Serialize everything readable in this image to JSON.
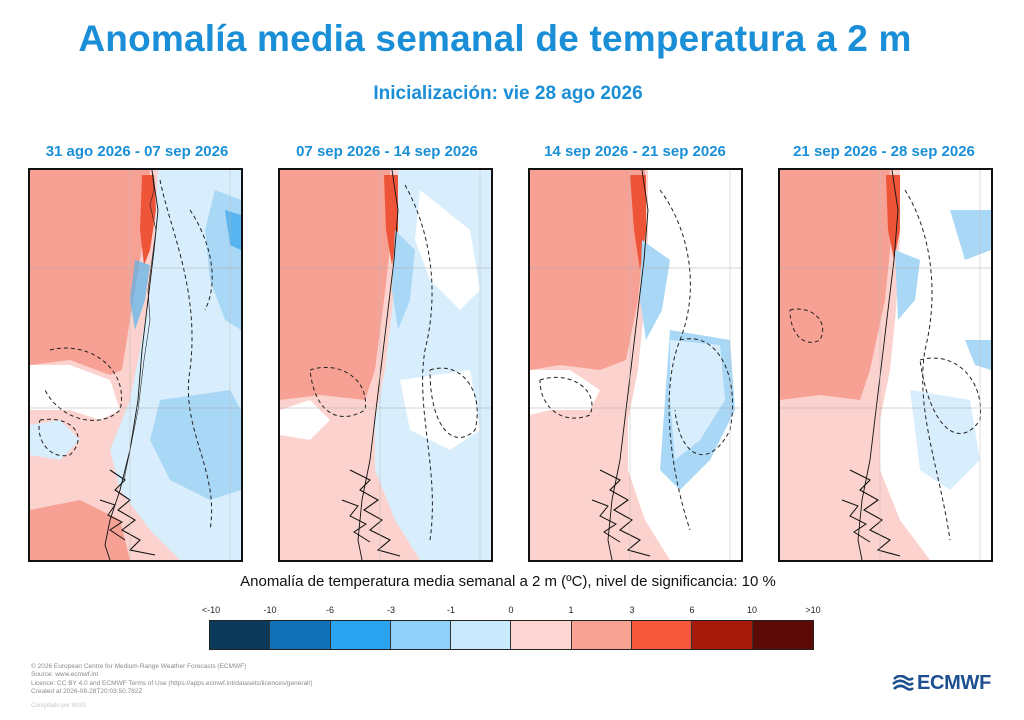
{
  "title": "Anomalía media semanal de temperatura a 2 m",
  "subtitle": "Inicialización: vie 28 ago 2026",
  "panels": [
    {
      "label": "31 ago 2026 - 07 sep 2026"
    },
    {
      "label": "07 sep 2026 - 14 sep 2026"
    },
    {
      "label": "14 sep 2026 - 21 sep 2026"
    },
    {
      "label": "21 sep 2026 - 28 sep 2026"
    }
  ],
  "legend": {
    "title": "Anomalía de temperatura media semanal a 2 m (ºC), nivel de significancia: 10 %",
    "ticks": [
      "<-10",
      "-10",
      "-6",
      "-3",
      "-1",
      "0",
      "1",
      "3",
      "6",
      "10",
      ">10"
    ],
    "colors": [
      "#0b3a5b",
      "#1070b8",
      "#2aa4f0",
      "#8fd0fb",
      "#c9e9fc",
      "#fcd6d2",
      "#f8a294",
      "#f6563a",
      "#a81a0c",
      "#5c0a05"
    ]
  },
  "colors": {
    "title": "#1a8fd8",
    "logo": "#1d4f91",
    "anomaly_warm_light": "#fbd2cd",
    "anomaly_warm": "#f6a194",
    "anomaly_hot": "#ee5538",
    "anomaly_cool_light": "#d9eefc",
    "anomaly_cool": "#a9d8f7",
    "anomaly_cold": "#57b4ee"
  },
  "credits": [
    "© 2026 European Centre for Medium-Range Weather Forecasts (ECMWF)",
    "Source: www.ecmwf.int",
    "Licence: CC BY 4.0 and ECMWF Terms of Use (https://apps.ecmwf.int/datasets/licences/general/)",
    "Created at 2026-08-28T20:03:50.782Z"
  ],
  "compiled": "Compilado por WUG",
  "logo_text": "ECMWF",
  "logo_icon": "ecmwf-waves-icon"
}
